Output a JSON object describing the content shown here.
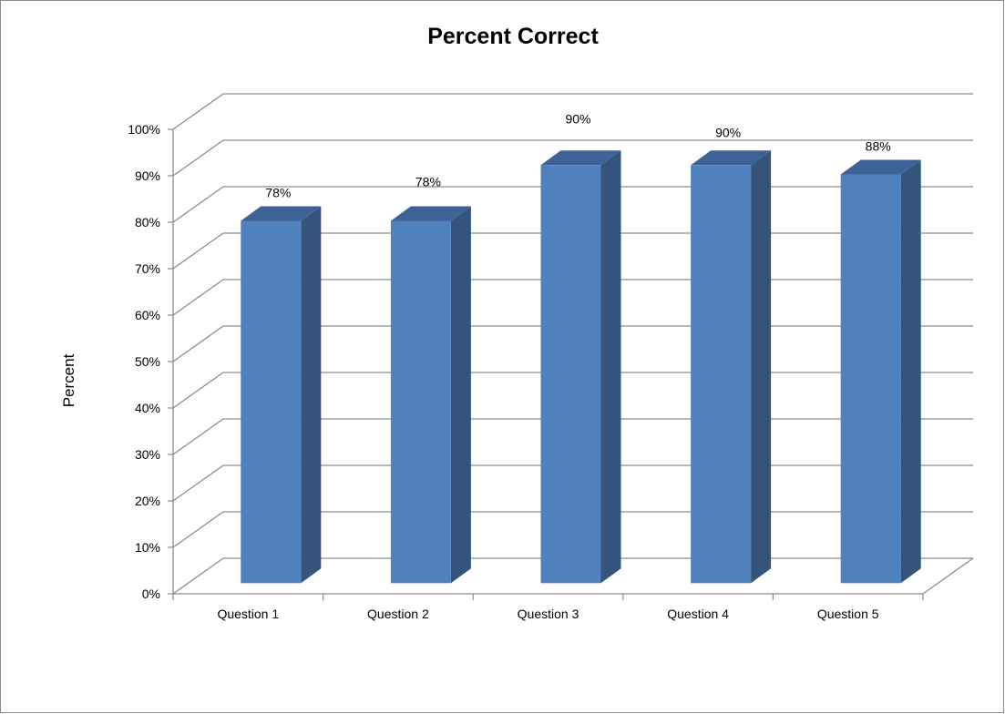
{
  "chart_data": {
    "type": "bar",
    "title": "Percent Correct",
    "ylabel": "Percent",
    "xlabel": "",
    "categories": [
      "Question 1",
      "Question 2",
      "Question 3",
      "Question 4",
      "Question 5"
    ],
    "values": [
      78,
      78,
      90,
      90,
      88
    ],
    "data_labels": [
      "78%",
      "78%",
      "90%",
      "90%",
      "88%"
    ],
    "ylim": [
      0,
      100
    ],
    "y_ticks": [
      "0%",
      "10%",
      "20%",
      "30%",
      "40%",
      "50%",
      "60%",
      "70%",
      "80%",
      "90%",
      "100%"
    ],
    "grid": true,
    "legend": "none",
    "three_d": true,
    "colors": {
      "bar_front": "#4f81bd",
      "bar_side": "#34547c",
      "bar_top": "#3d6396",
      "gridline": "#8c8c8c"
    }
  }
}
